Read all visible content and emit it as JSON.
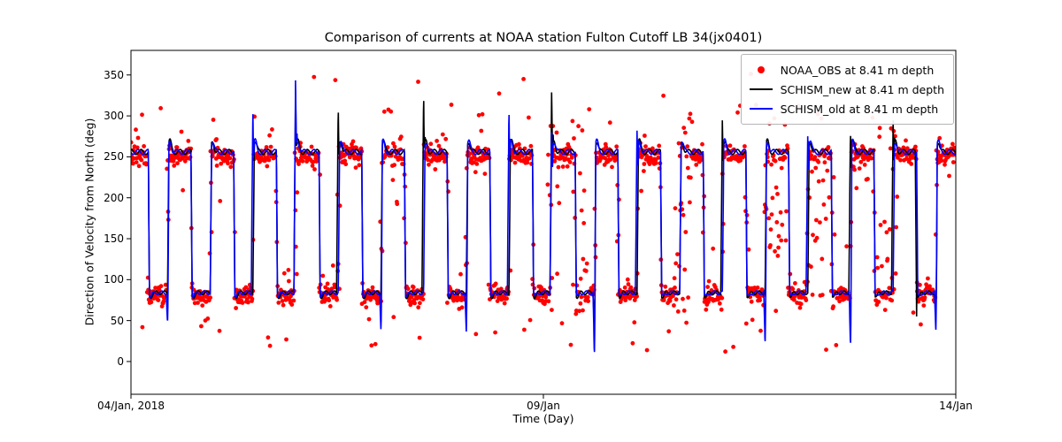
{
  "figure": {
    "title": "Comparison of currents at NOAA station Fulton Cutoff LB 34(jx0401)",
    "x_label": "Time (Day)",
    "y_label": "Direction of Velocity from North (deg)",
    "background": "#ffffff"
  },
  "axes": {
    "x_range": [
      4,
      14
    ],
    "y_range": [
      -40,
      380
    ],
    "y_ticks": [
      0,
      50,
      100,
      150,
      200,
      250,
      300,
      350
    ],
    "x_ticks": [
      {
        "value": 4,
        "label": "04/Jan, 2018"
      },
      {
        "value": 9,
        "label": "09/Jan"
      },
      {
        "value": 14,
        "label": "14/Jan"
      }
    ]
  },
  "legend": {
    "items": [
      {
        "label": "NOAA_OBS at 8.41 m depth",
        "type": "marker",
        "color": "#ff0000"
      },
      {
        "label": "SCHISM_new at 8.41 m depth",
        "type": "line",
        "color": "#000000"
      },
      {
        "label": "SCHISM_old at 8.41 m depth",
        "type": "line",
        "color": "#0000ff"
      }
    ]
  },
  "chart_data": {
    "type": "line",
    "title": "Comparison of currents at NOAA station Fulton Cutoff LB 34(jx0401)",
    "xlabel": "Time (Day)",
    "ylabel": "Direction of Velocity from North (deg)",
    "x_unit": "days (January 2018)",
    "x_range": [
      4,
      14
    ],
    "ylim": [
      -40,
      380
    ],
    "grid": false,
    "legend_position": "upper right",
    "tide": {
      "period_days": 0.5175,
      "high_fraction": 0.55,
      "first_drop_day": 4.21,
      "flood_direction_deg": 256,
      "ebb_direction_deg": 84
    },
    "series": [
      {
        "name": "NOAA_OBS at 8.41 m depth",
        "type": "scatter",
        "color": "#ff0000",
        "flood_mean_deg": 251,
        "ebb_mean_deg": 81,
        "noise_sd_deg": 6,
        "sample_interval_days": 0.006,
        "spread_windows": [
          [
            9.05,
            9.2
          ],
          [
            9.35,
            9.55
          ],
          [
            10.6,
            10.8
          ],
          [
            11.7,
            11.95
          ],
          [
            12.2,
            12.55
          ],
          [
            13.05,
            13.3
          ]
        ],
        "seed": 7
      },
      {
        "name": "SCHISM_new at 8.41 m depth",
        "type": "line",
        "color": "#000000",
        "up_spikes": [
          [
            5.9955,
            338
          ],
          [
            6.513,
            315
          ],
          [
            7.548,
            330
          ],
          [
            9.1005,
            335
          ],
          [
            11.1705,
            300
          ],
          [
            12.723,
            285
          ],
          [
            13.2405,
            300
          ]
        ],
        "down_spikes": [
          [
            9.618,
            40
          ],
          [
            13.525,
            55
          ],
          [
            13.758,
            58
          ]
        ],
        "seed": 3
      },
      {
        "name": "SCHISM_old at 8.41 m depth",
        "type": "line",
        "color": "#0000ff",
        "up_spikes": [
          [
            5.478,
            313
          ],
          [
            5.9955,
            350
          ],
          [
            8.583,
            312
          ],
          [
            9.1005,
            285
          ],
          [
            10.1355,
            287
          ],
          [
            12.2055,
            280
          ]
        ],
        "down_spikes": [
          [
            4.443,
            47
          ],
          [
            7.0305,
            38
          ],
          [
            8.0655,
            35
          ],
          [
            9.618,
            6
          ],
          [
            11.688,
            20
          ],
          [
            12.723,
            18
          ],
          [
            13.758,
            35
          ]
        ],
        "seed": 5
      }
    ]
  }
}
